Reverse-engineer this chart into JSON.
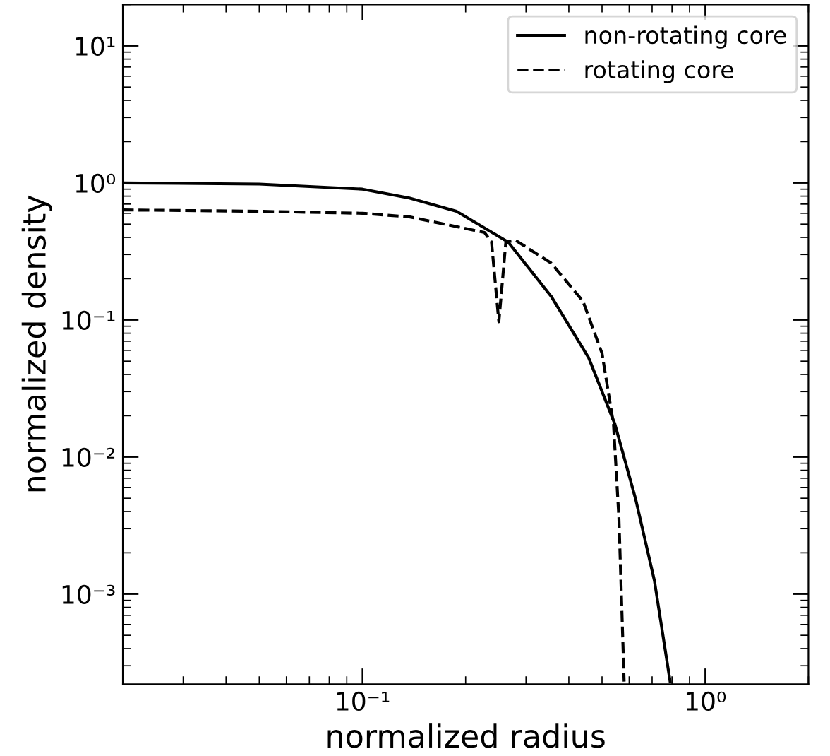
{
  "chart_data": {
    "type": "line",
    "xlabel": "normalized radius",
    "ylabel": "normalized density",
    "log": "xy",
    "xlim": [
      0.02,
      2
    ],
    "ylim": [
      0.00022,
      20
    ],
    "xticks": [
      {
        "value": 0.1,
        "label": "10⁻¹"
      },
      {
        "value": 1,
        "label": "10⁰"
      }
    ],
    "yticks": [
      {
        "value": 0.001,
        "label": "10⁻³"
      },
      {
        "value": 0.01,
        "label": "10⁻²"
      },
      {
        "value": 0.1,
        "label": "10⁻¹"
      },
      {
        "value": 1,
        "label": "10⁰"
      },
      {
        "value": 10,
        "label": "10¹"
      }
    ],
    "legend": "top right",
    "grid": false,
    "series": [
      {
        "name": "non-rotating core",
        "color": "#000000",
        "line_style": "solid",
        "x": [
          0.02,
          0.05,
          0.1,
          0.137,
          0.188,
          0.266,
          0.355,
          0.457,
          0.545,
          0.627,
          0.711,
          0.79
        ],
        "values": [
          1.0,
          0.98,
          0.9,
          0.775,
          0.62,
          0.37,
          0.149,
          0.053,
          0.0174,
          0.0049,
          0.00125,
          0.00023
        ]
      },
      {
        "name": "rotating core",
        "color": "#000000",
        "line_style": "dashed",
        "x": [
          0.02,
          0.05,
          0.1,
          0.137,
          0.227,
          0.238,
          0.25,
          0.262,
          0.28,
          0.355,
          0.44,
          0.5,
          0.54,
          0.56,
          0.58
        ],
        "values": [
          0.635,
          0.62,
          0.6,
          0.565,
          0.435,
          0.37,
          0.097,
          0.37,
          0.38,
          0.26,
          0.137,
          0.057,
          0.0174,
          0.0036,
          0.00023
        ]
      }
    ]
  }
}
